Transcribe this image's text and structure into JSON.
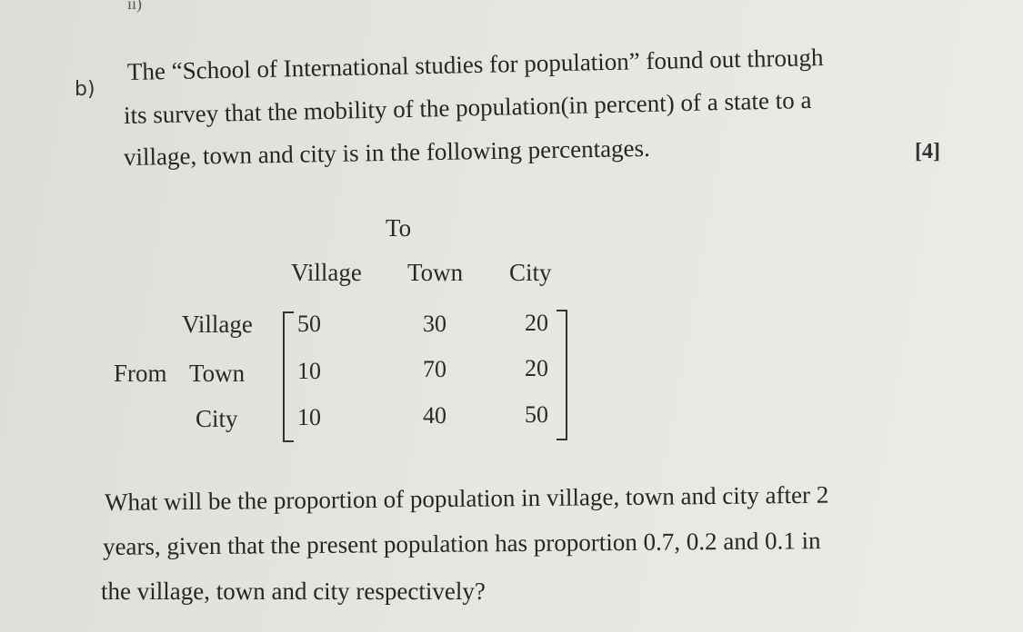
{
  "top_mark": "ii)",
  "question": {
    "label": "b)",
    "lines": [
      "The “School of International studies for population” found out through",
      "its survey that the mobility of the population(in percent) of a state to a",
      "village, town and city is in the following percentages."
    ],
    "marks": "[4]"
  },
  "matrix": {
    "to_label": "To",
    "from_label": "From",
    "columns": [
      "Village",
      "Town",
      "City"
    ],
    "rows": [
      {
        "label": "Village",
        "values": [
          "50",
          "30",
          "20"
        ]
      },
      {
        "label": "Town",
        "values": [
          "10",
          "70",
          "20"
        ]
      },
      {
        "label": "City",
        "values": [
          "10",
          "40",
          "50"
        ]
      }
    ]
  },
  "followup": {
    "lines": [
      "What will be the proportion of population in village, town and city after 2",
      "years, given that the present population has proportion 0.7, 0.2 and 0.1 in",
      "the village, town and city respectively?"
    ]
  }
}
